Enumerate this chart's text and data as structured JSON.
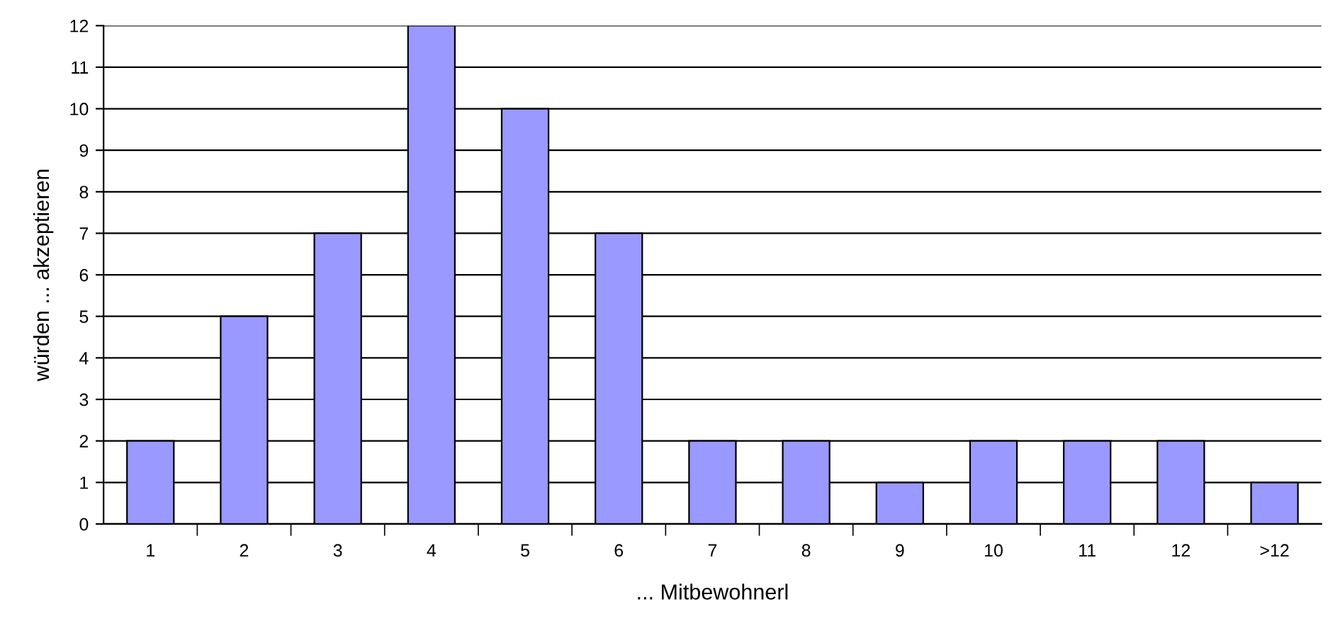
{
  "chart_data": {
    "type": "bar",
    "xlabel": "... Mitbewohnerl",
    "ylabel": "würden ... akzeptieren",
    "categories": [
      "1",
      "2",
      "3",
      "4",
      "5",
      "6",
      "7",
      "8",
      "9",
      "10",
      "11",
      "12",
      ">12"
    ],
    "values": [
      2,
      5,
      7,
      12,
      10,
      7,
      2,
      2,
      1,
      2,
      2,
      2,
      1
    ],
    "color": "#9999ff",
    "ylim": [
      0,
      12
    ],
    "yticks": [
      0,
      1,
      2,
      3,
      4,
      5,
      6,
      7,
      8,
      9,
      10,
      11,
      12
    ],
    "grid": "y"
  }
}
